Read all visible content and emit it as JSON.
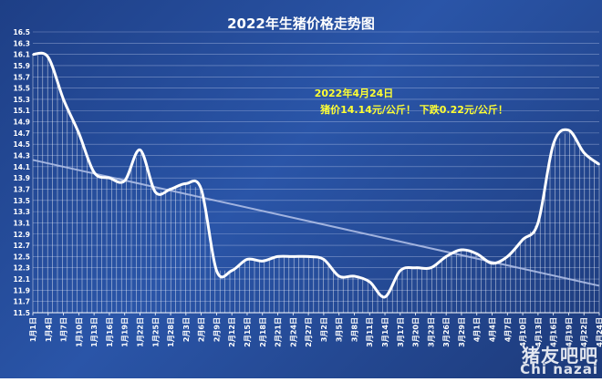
{
  "chart_data": {
    "type": "line",
    "title": "2022年生猪价格走势图",
    "annotation": {
      "line1": "2022年4月24日",
      "line2": "猪价14.14元/公斤！ 下跌0.22元/公斤！"
    },
    "ylim": [
      11.5,
      16.5
    ],
    "yticks": [
      "16.5",
      "16.3",
      "16.1",
      "15.9",
      "15.7",
      "15.5",
      "15.3",
      "15.1",
      "14.9",
      "14.7",
      "14.5",
      "14.3",
      "14.1",
      "13.9",
      "13.7",
      "13.5",
      "13.3",
      "13.1",
      "12.9",
      "12.7",
      "12.5",
      "12.3",
      "12.1",
      "11.9",
      "11.7",
      "11.5"
    ],
    "x": [
      "1月1日",
      "1月4日",
      "1月7日",
      "1月10日",
      "1月13日",
      "1月16日",
      "1月19日",
      "1月22日",
      "1月25日",
      "1月28日",
      "2月3日",
      "2月6日",
      "2月9日",
      "2月12日",
      "2月15日",
      "2月18日",
      "2月21日",
      "2月24日",
      "2月27日",
      "3月2日",
      "3月5日",
      "3月8日",
      "3月11日",
      "3月14日",
      "3月17日",
      "3月20日",
      "3月23日",
      "3月26日",
      "3月29日",
      "4月1日",
      "4月4日",
      "4月7日",
      "4月10日",
      "4月13日",
      "4月16日",
      "4月19日",
      "4月22日",
      "4月24日"
    ],
    "series": [
      {
        "values": [
          16.1,
          16.05,
          15.3,
          14.7,
          14.0,
          13.9,
          13.85,
          14.4,
          13.65,
          13.7,
          13.8,
          13.7,
          12.25,
          12.25,
          12.45,
          12.42,
          12.5,
          12.5,
          12.5,
          12.45,
          12.15,
          12.15,
          12.05,
          11.78,
          12.25,
          12.3,
          12.3,
          12.5,
          12.62,
          12.55,
          12.38,
          12.5,
          12.8,
          13.1,
          14.5,
          14.75,
          14.35,
          14.14
        ]
      }
    ],
    "trend": {
      "start": 14.22,
      "end": 11.98
    },
    "colors": {
      "line": "#ffffff",
      "trend": "#aebee6",
      "title": "#ffffff",
      "annotation": "#ffff33",
      "grid": "#c8d4f2"
    },
    "grid": true
  },
  "watermark": {
    "cn": "猪友吧吧",
    "en": "Chi nazai"
  }
}
